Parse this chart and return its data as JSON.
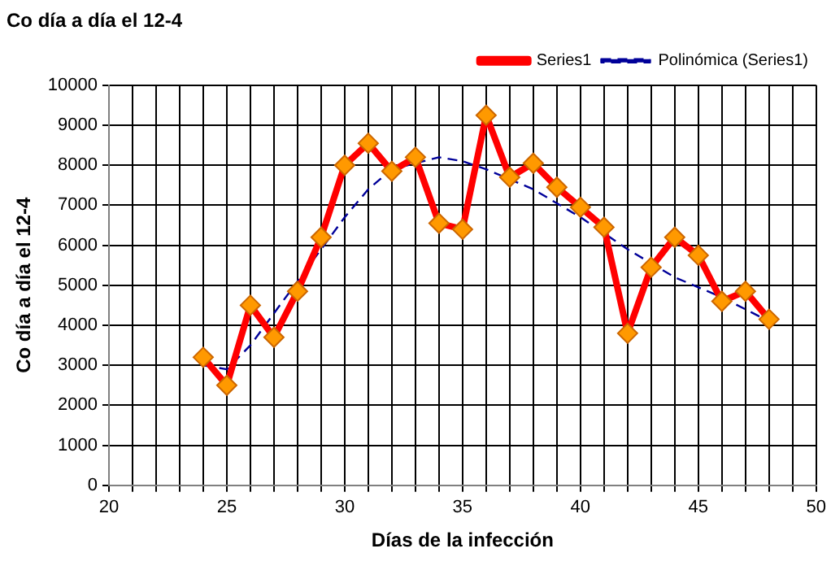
{
  "chart_data": {
    "type": "line",
    "title": "Co día a día el 12-4",
    "xlabel": "Días de la infección",
    "ylabel": "Co día a día el 12-4",
    "xlim": [
      20,
      50
    ],
    "ylim": [
      0,
      10000
    ],
    "xticks": [
      20,
      {
        "value": 21,
        "label": null
      },
      {
        "value": 22,
        "label": null
      },
      {
        "value": 23,
        "label": null
      },
      {
        "value": 24,
        "label": null
      },
      25,
      {
        "value": 26,
        "label": null
      },
      {
        "value": 27,
        "label": null
      },
      {
        "value": 28,
        "label": null
      },
      {
        "value": 29,
        "label": null
      },
      30,
      {
        "value": 31,
        "label": null
      },
      {
        "value": 32,
        "label": null
      },
      {
        "value": 33,
        "label": null
      },
      {
        "value": 34,
        "label": null
      },
      35,
      {
        "value": 36,
        "label": null
      },
      {
        "value": 37,
        "label": null
      },
      {
        "value": 38,
        "label": null
      },
      {
        "value": 39,
        "label": null
      },
      40,
      {
        "value": 41,
        "label": null
      },
      {
        "value": 42,
        "label": null
      },
      {
        "value": 43,
        "label": null
      },
      {
        "value": 44,
        "label": null
      },
      45,
      {
        "value": 46,
        "label": null
      },
      {
        "value": 47,
        "label": null
      },
      {
        "value": 48,
        "label": null
      },
      {
        "value": 49,
        "label": null
      },
      50
    ],
    "yticks": [
      0,
      1000,
      2000,
      3000,
      4000,
      5000,
      6000,
      7000,
      8000,
      9000,
      10000
    ],
    "grid": true,
    "legend": "top right",
    "series": [
      {
        "name": "Series1",
        "color": "#ff0000",
        "marker": "diamond",
        "line_style": "solid",
        "x": [
          24,
          25,
          26,
          27,
          28,
          29,
          30,
          31,
          32,
          33,
          34,
          35,
          36,
          37,
          38,
          39,
          40,
          41,
          42,
          43,
          44,
          45,
          46,
          47,
          48
        ],
        "values": [
          3200,
          2500,
          4500,
          3700,
          4850,
          6200,
          8000,
          8550,
          7850,
          8200,
          6550,
          6400,
          9250,
          7700,
          8050,
          7450,
          6950,
          6450,
          3800,
          5450,
          6200,
          5750,
          4600,
          4850,
          4150
        ]
      },
      {
        "name": "Polinómica (Series1)",
        "color": "#000099",
        "marker": "none",
        "line_style": "dashed",
        "x": [
          24,
          25,
          26,
          27,
          28,
          29,
          30,
          31,
          32,
          34,
          35,
          36,
          38,
          40,
          42,
          44,
          46,
          48
        ],
        "values": [
          3000,
          2900,
          3500,
          4300,
          5100,
          5900,
          6700,
          7400,
          7900,
          8200,
          8100,
          7900,
          7400,
          6700,
          5900,
          5200,
          4700,
          4100
        ]
      }
    ]
  }
}
